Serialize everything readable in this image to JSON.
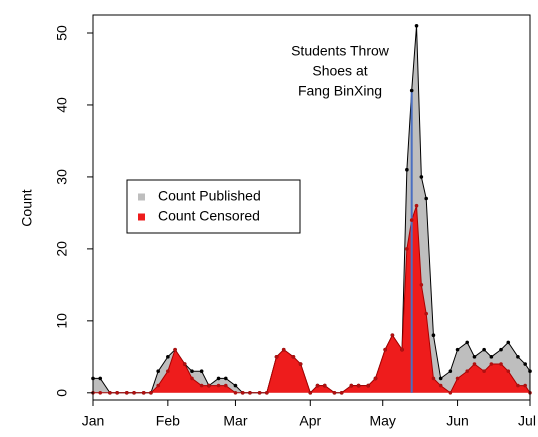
{
  "chart_data": {
    "type": "area",
    "y_label": "Count",
    "annotation": [
      "Students Throw",
      "Shoes at",
      "Fang BinXing"
    ],
    "annotation_x": 132,
    "annotation_color": "#4a6fc1",
    "x": [
      0,
      3,
      7,
      10,
      14,
      17,
      21,
      24,
      27,
      31,
      34,
      38,
      41,
      45,
      48,
      52,
      55,
      59,
      62,
      65,
      69,
      72,
      76,
      79,
      83,
      86,
      90,
      93,
      96,
      100,
      103,
      107,
      110,
      114,
      117,
      121,
      124,
      128,
      130,
      132,
      134,
      136,
      138,
      141,
      144,
      148,
      151,
      155,
      158,
      162,
      165,
      169,
      172,
      176,
      179,
      181
    ],
    "series": [
      {
        "name": "Count Published",
        "color": "#bebebe",
        "point_color": "#000000",
        "values": [
          2,
          2,
          0,
          0,
          0,
          0,
          0,
          0,
          3,
          5,
          6,
          4,
          3,
          3,
          1,
          2,
          2,
          1,
          0,
          0,
          0,
          0,
          5,
          6,
          5,
          4,
          0,
          1,
          1,
          0,
          0,
          1,
          1,
          1,
          2,
          6,
          8,
          6,
          31,
          42,
          51,
          30,
          27,
          8,
          2,
          3,
          6,
          7,
          5,
          6,
          5,
          6,
          7,
          5,
          4,
          3
        ]
      },
      {
        "name": "Count Censored",
        "color": "#ee1c1c",
        "point_color": "#b01010",
        "values": [
          0,
          0,
          0,
          0,
          0,
          0,
          0,
          0,
          1,
          3,
          6,
          4,
          2,
          1,
          1,
          1,
          1,
          0,
          0,
          0,
          0,
          0,
          5,
          6,
          5,
          4,
          0,
          1,
          1,
          0,
          0,
          1,
          1,
          1,
          2,
          6,
          8,
          6,
          20,
          24,
          26,
          15,
          11,
          2,
          1,
          0,
          2,
          3,
          4,
          3,
          4,
          4,
          3,
          1,
          1,
          0
        ]
      }
    ],
    "xlim": [
      0,
      181
    ],
    "xticks": [
      {
        "value": 0,
        "label": "Jan"
      },
      {
        "value": 31,
        "label": "Feb"
      },
      {
        "value": 59,
        "label": "Mar"
      },
      {
        "value": 90,
        "label": "Apr"
      },
      {
        "value": 120,
        "label": "May"
      },
      {
        "value": 151,
        "label": "Jun"
      },
      {
        "value": 181,
        "label": "Jul"
      }
    ],
    "ylim": [
      -1,
      52.5
    ],
    "yticks": [
      0,
      10,
      20,
      30,
      40,
      50
    ],
    "legend": "left"
  }
}
